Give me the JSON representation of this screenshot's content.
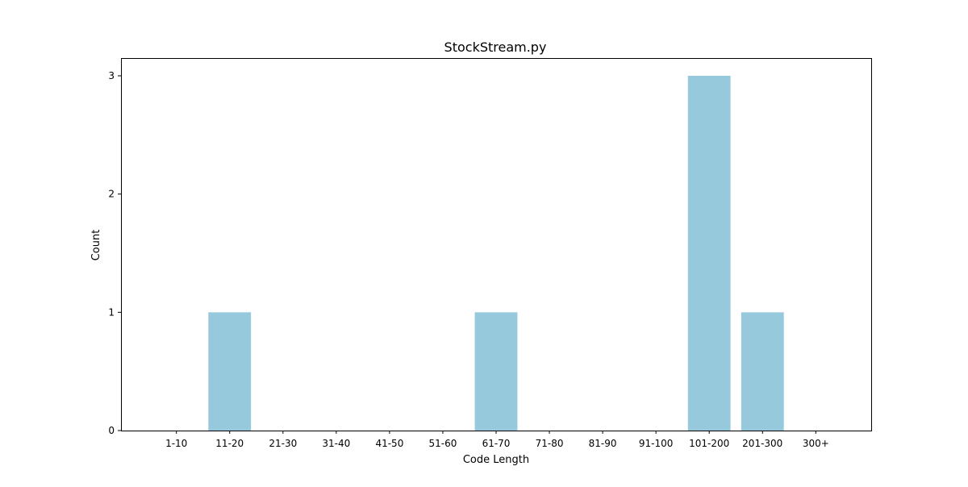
{
  "chart_data": {
    "type": "bar",
    "title": "StockStream.py",
    "xlabel": "Code Length",
    "ylabel": "Count",
    "categories": [
      "1-10",
      "11-20",
      "21-30",
      "31-40",
      "41-50",
      "51-60",
      "61-70",
      "71-80",
      "81-90",
      "91-100",
      "101-200",
      "201-300",
      "300+"
    ],
    "values": [
      0,
      1,
      0,
      0,
      0,
      0,
      1,
      0,
      0,
      0,
      3,
      1,
      0
    ],
    "ylim": [
      0,
      3.15
    ],
    "yticks": [
      0,
      1,
      2,
      3
    ],
    "bar_color": "#96c9dc",
    "grid": false,
    "legend": "none"
  }
}
